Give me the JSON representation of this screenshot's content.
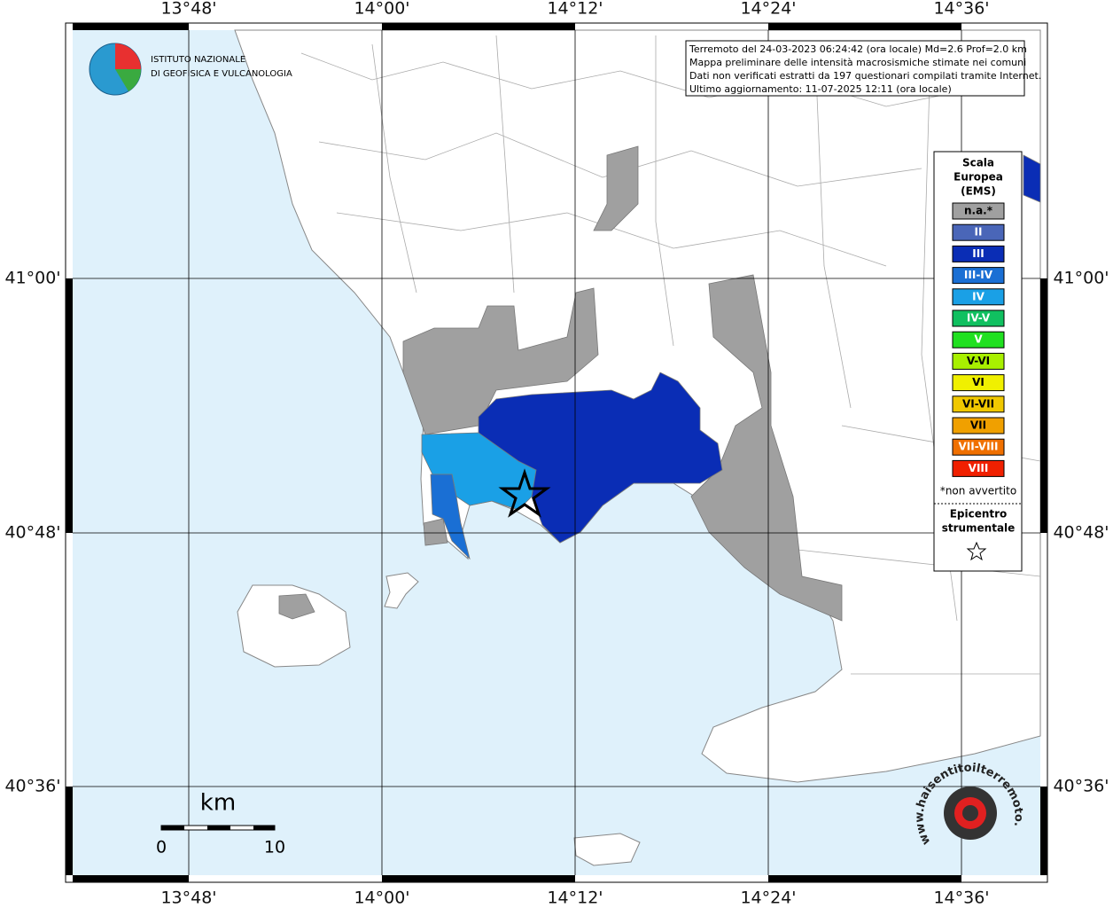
{
  "axis_labels": {
    "top": [
      "13°48'",
      "14°00'",
      "14°12'",
      "14°24'",
      "14°36'"
    ],
    "bottom": [
      "13°48'",
      "14°00'",
      "14°12'",
      "14°24'",
      "14°36'"
    ],
    "left": [
      "41°00'",
      "40°48'",
      "40°36'"
    ],
    "right": [
      "41°00'",
      "40°48'",
      "40°36'"
    ]
  },
  "logo": {
    "line1": "ISTITUTO NAZIONALE",
    "line2": "DI GEOFISICA E VULCANOLOGIA"
  },
  "info": {
    "lines": [
      "Terremoto del 24-03-2023 06:24:42 (ora locale) Md=2.6 Prof=2.0 km",
      "Mappa preliminare delle intensità macrosismiche stimate nei comuni",
      "Dati non verificati estratti da 197 questionari compilati tramite Internet.",
      "Ultimo aggiornamento: 11-07-2025 12:11 (ora locale)"
    ]
  },
  "legend": {
    "title": [
      "Scala",
      "Europea",
      "(EMS)"
    ],
    "entries": [
      {
        "label": "n.a.*",
        "color": "#a0a0a0"
      },
      {
        "label": "II",
        "color": "#4a66b8"
      },
      {
        "label": "III",
        "color": "#0a2db5"
      },
      {
        "label": "III-IV",
        "color": "#1a6fd4"
      },
      {
        "label": "IV",
        "color": "#1aa0e6"
      },
      {
        "label": "IV-V",
        "color": "#10c060"
      },
      {
        "label": "V",
        "color": "#20e020"
      },
      {
        "label": "V-VI",
        "color": "#a8f000"
      },
      {
        "label": "VI",
        "color": "#f0f000"
      },
      {
        "label": "VI-VII",
        "color": "#f0c800"
      },
      {
        "label": "VII",
        "color": "#f0a000"
      },
      {
        "label": "VII-VIII",
        "color": "#f07000"
      },
      {
        "label": "VIII",
        "color": "#f02000"
      }
    ],
    "note": "*non avvertito",
    "epicenter": [
      "Epicentro",
      "strumentale"
    ]
  },
  "scale_bar": {
    "unit": "km",
    "start": 0,
    "end": 10
  },
  "watermark": "www.haisentitoilterremoto.it"
}
